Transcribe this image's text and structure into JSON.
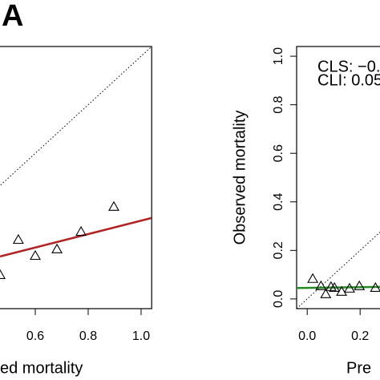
{
  "chart_data": [
    {
      "type": "scatter",
      "panel_label": "A",
      "x_label": "ed mortality",
      "xlim": [
        -0.04,
        1.04
      ],
      "ylim": [
        -0.04,
        1.04
      ],
      "xticks": [
        0.6,
        0.8,
        {
          "value": 1,
          "label": "1.0"
        }
      ],
      "diagonal": true,
      "points": {
        "x": [
          0.467,
          0.536,
          0.6,
          0.682,
          0.773,
          0.897
        ],
        "y": [
          0.099,
          0.244,
          0.178,
          0.205,
          0.277,
          0.38
        ]
      },
      "fit_line": {
        "color": "#b22222",
        "x": [
          0.467,
          1.088
        ],
        "y": [
          0.175,
          0.347
        ]
      }
    },
    {
      "type": "scatter",
      "x_label": "Pre",
      "y_label": "Observed mortality",
      "xlim": [
        -0.04,
        1.04
      ],
      "ylim": [
        -0.04,
        1.04
      ],
      "xticks": [
        {
          "value": 0,
          "label": "0.0"
        },
        0.2
      ],
      "yticks": [
        {
          "value": 0,
          "label": "0.0"
        },
        0.2,
        0.4,
        0.6,
        0.8,
        {
          "value": 1,
          "label": "1.0"
        }
      ],
      "annotations": [
        "CLS: −0.",
        "CLI: 0.05"
      ],
      "diagonal": true,
      "points": {
        "x": [
          0.021,
          0.052,
          0.07,
          0.09,
          0.103,
          0.13,
          0.16,
          0.197,
          0.258
        ],
        "y": [
          0.083,
          0.053,
          0.02,
          0.05,
          0.046,
          0.03,
          0.043,
          0.053,
          0.046
        ]
      },
      "fit_line": {
        "color": "#228b22",
        "x": [
          -0.04,
          0.3
        ],
        "y": [
          0.045,
          0.05
        ]
      }
    }
  ]
}
